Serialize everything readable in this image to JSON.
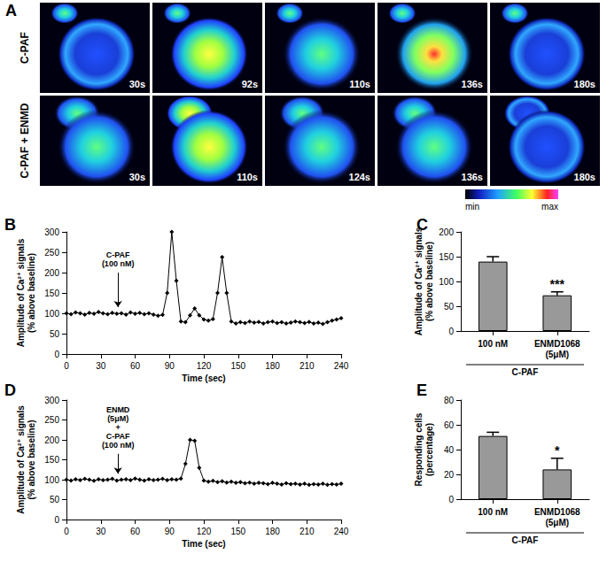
{
  "panel_a": {
    "panel": "A",
    "rows": [
      {
        "label": "C-PAF",
        "times": [
          "30s",
          "92s",
          "110s",
          "136s",
          "180s"
        ]
      },
      {
        "label": "C-PAF + ENMD",
        "times": [
          "30s",
          "110s",
          "124s",
          "136s",
          "180s"
        ]
      }
    ],
    "colorbar": {
      "min_label": "min",
      "max_label": "max"
    }
  },
  "chart_data": [
    {
      "panel": "B",
      "type": "line",
      "color": "#000000",
      "marker": "diamond",
      "x": [
        0,
        4,
        8,
        12,
        16,
        20,
        24,
        28,
        32,
        36,
        40,
        44,
        48,
        52,
        56,
        60,
        64,
        68,
        72,
        76,
        80,
        84,
        88,
        92,
        96,
        100,
        104,
        108,
        112,
        116,
        120,
        124,
        128,
        132,
        136,
        140,
        144,
        148,
        152,
        156,
        160,
        164,
        168,
        172,
        176,
        180,
        184,
        188,
        192,
        196,
        200,
        204,
        208,
        212,
        216,
        220,
        224,
        228,
        232,
        236,
        240
      ],
      "values": [
        100,
        98,
        102,
        100,
        97,
        101,
        99,
        103,
        100,
        98,
        101,
        99,
        100,
        97,
        102,
        99,
        101,
        98,
        100,
        97,
        94,
        96,
        150,
        300,
        180,
        80,
        78,
        95,
        112,
        95,
        85,
        82,
        86,
        150,
        238,
        150,
        80,
        75,
        78,
        76,
        80,
        77,
        79,
        75,
        78,
        80,
        76,
        78,
        75,
        77,
        80,
        78,
        76,
        79,
        75,
        77,
        74,
        78,
        82,
        85,
        88
      ],
      "xlim": [
        0,
        240
      ],
      "xticks": [
        0,
        30,
        60,
        90,
        120,
        150,
        180,
        210,
        240
      ],
      "ylim": [
        0,
        300
      ],
      "yticks": [
        0,
        50,
        100,
        150,
        200,
        250,
        300
      ],
      "x_label": "Time (sec)",
      "y_label": "Amplitude of Ca²⁺ signals\n(% above baseline)",
      "annotations": [
        {
          "text": "C-PAF\n(100 nM)",
          "x": 45,
          "arrow": [
            200,
            115
          ]
        }
      ]
    },
    {
      "panel": "C",
      "type": "bar",
      "color": "#999999",
      "categories": [
        "100 nM",
        "ENMD1068\n(5μM)"
      ],
      "values": [
        140,
        72
      ],
      "errors": [
        10,
        7
      ],
      "ylim": [
        0,
        200
      ],
      "yticks": [
        0,
        50,
        100,
        150,
        200
      ],
      "y_label": "Amplitude of Ca²⁺ signals\n(% above baseline)",
      "group_label": "C-PAF",
      "annotations": [
        {
          "text": "***",
          "category": "ENMD1068\n(5μM)"
        }
      ]
    },
    {
      "panel": "D",
      "type": "line",
      "color": "#000000",
      "marker": "diamond",
      "x": [
        0,
        4,
        8,
        12,
        16,
        20,
        24,
        28,
        32,
        36,
        40,
        44,
        48,
        52,
        56,
        60,
        64,
        68,
        72,
        76,
        80,
        84,
        88,
        92,
        96,
        100,
        104,
        108,
        112,
        116,
        120,
        124,
        128,
        132,
        136,
        140,
        144,
        148,
        152,
        156,
        160,
        164,
        168,
        172,
        176,
        180,
        184,
        188,
        192,
        196,
        200,
        204,
        208,
        212,
        216,
        220,
        224,
        228,
        232,
        236,
        240
      ],
      "values": [
        100,
        98,
        101,
        99,
        102,
        100,
        97,
        101,
        99,
        100,
        102,
        98,
        100,
        101,
        99,
        103,
        100,
        98,
        101,
        99,
        100,
        102,
        99,
        101,
        100,
        103,
        140,
        200,
        198,
        130,
        98,
        95,
        97,
        94,
        96,
        93,
        95,
        92,
        94,
        91,
        93,
        90,
        92,
        91,
        89,
        92,
        90,
        88,
        91,
        89,
        90,
        88,
        90,
        87,
        89,
        88,
        90,
        87,
        89,
        88,
        90
      ],
      "xlim": [
        0,
        240
      ],
      "xticks": [
        0,
        30,
        60,
        90,
        120,
        150,
        180,
        210,
        240
      ],
      "ylim": [
        0,
        300
      ],
      "yticks": [
        0,
        50,
        100,
        150,
        200,
        250,
        300
      ],
      "x_label": "Time (sec)",
      "y_label": "Amplitude of Ca²⁺ signals\n(% above baseline)",
      "annotations": [
        {
          "text": "ENMD\n(5μM)\n+\nC-PAF\n(100 nM)",
          "x": 45,
          "arrow": [
            165,
            115
          ]
        }
      ]
    },
    {
      "panel": "E",
      "type": "bar",
      "color": "#999999",
      "categories": [
        "100 nM",
        "ENMD1068\n(5μM)"
      ],
      "values": [
        51,
        24
      ],
      "errors": [
        3,
        9
      ],
      "ylim": [
        0,
        80
      ],
      "yticks": [
        0,
        20,
        40,
        60,
        80
      ],
      "y_label": "Responding cells\n(percentage)",
      "group_label": "C-PAF",
      "annotations": [
        {
          "text": "*",
          "category": "ENMD1068\n(5μM)"
        }
      ]
    }
  ]
}
